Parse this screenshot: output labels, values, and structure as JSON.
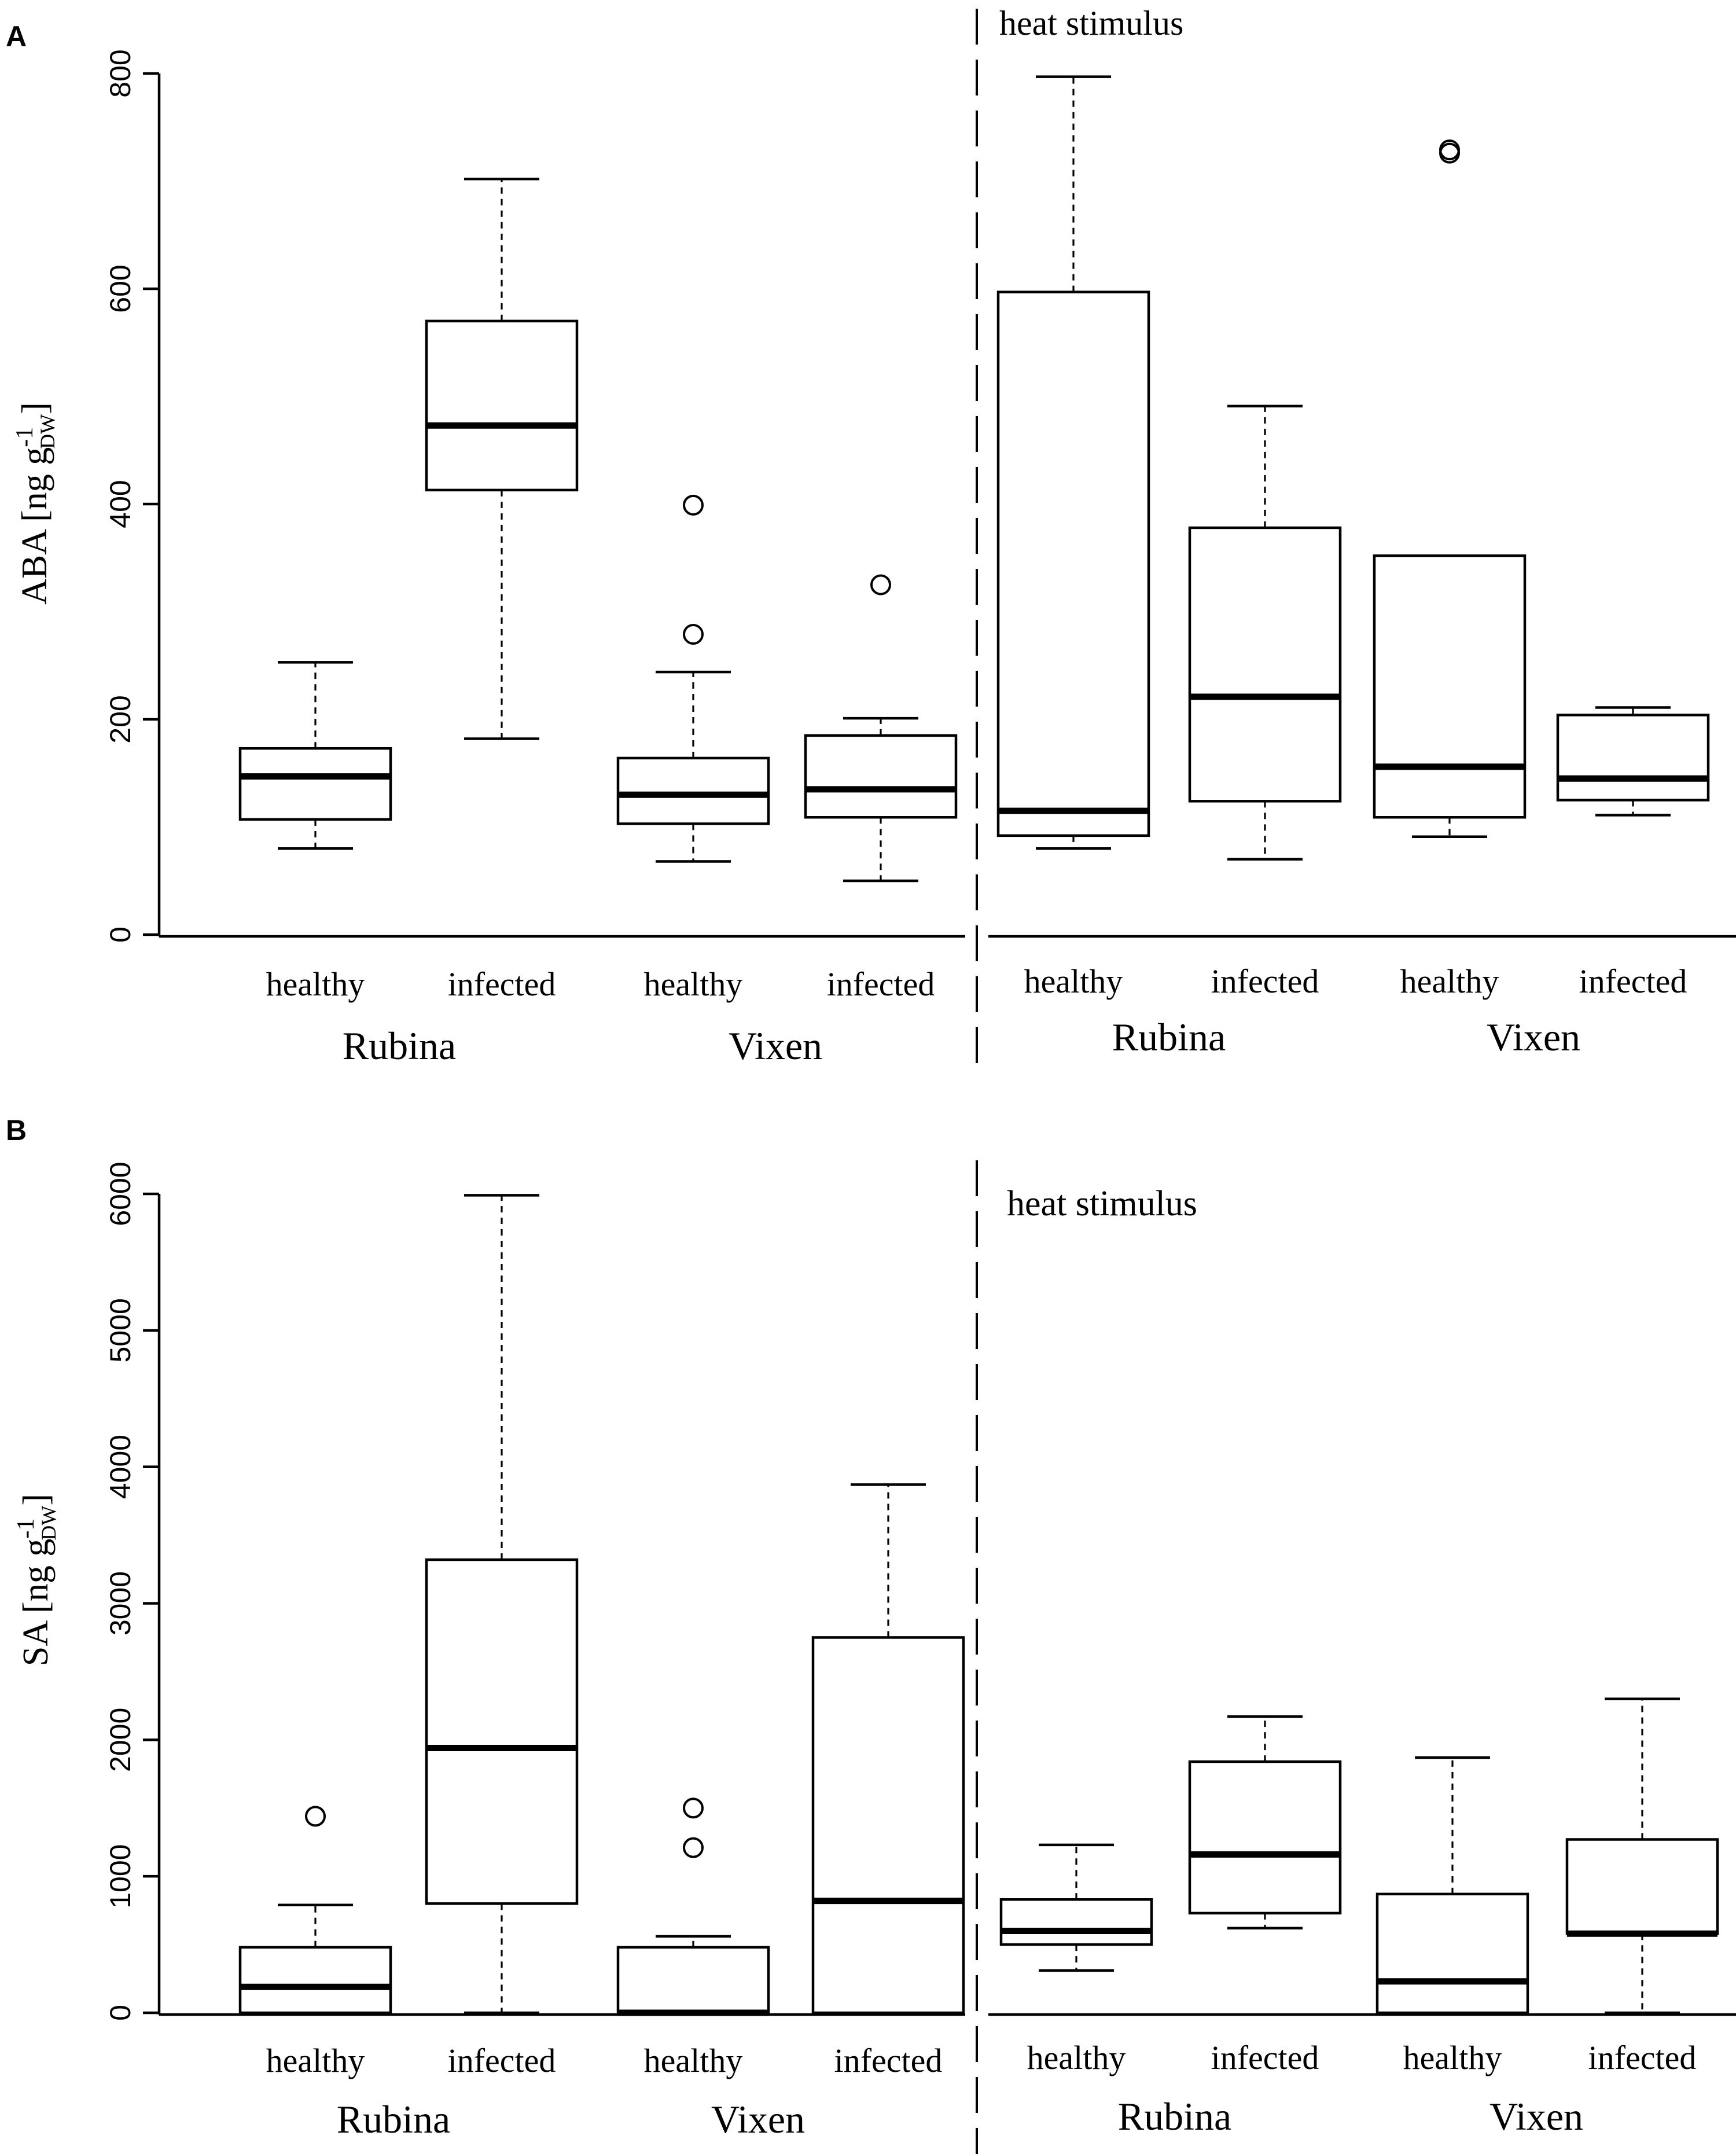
{
  "chart_data": [
    {
      "panel": "A",
      "type": "box",
      "ylabel": "ABA [ng g",
      "ylabel_sup": "-1",
      "ylabel_sub": "DW",
      "ylabel_end": "]",
      "ylim": [
        0,
        800
      ],
      "yticks": [
        "0",
        "200",
        "400",
        "600",
        "800"
      ],
      "annotation": "heat stimulus",
      "groups": [
        "Rubina",
        "Vixen",
        "Rubina",
        "Vixen"
      ],
      "boxes": [
        {
          "label": "healthy",
          "min": 80,
          "q1": 107,
          "median": 147,
          "q3": 173,
          "max": 253,
          "outliers": []
        },
        {
          "label": "infected",
          "min": 182,
          "q1": 413,
          "median": 473,
          "q3": 570,
          "max": 702,
          "outliers": []
        },
        {
          "label": "healthy",
          "min": 68,
          "q1": 103,
          "median": 130,
          "q3": 164,
          "max": 244,
          "outliers": [
            279,
            399
          ]
        },
        {
          "label": "infected",
          "min": 50,
          "q1": 109,
          "median": 135,
          "q3": 185,
          "max": 201,
          "outliers": [
            325
          ]
        },
        {
          "label": "healthy",
          "min": 80,
          "q1": 92,
          "median": 115,
          "q3": 597,
          "max": 797,
          "outliers": []
        },
        {
          "label": "infected",
          "min": 70,
          "q1": 124,
          "median": 221,
          "q3": 378,
          "max": 491,
          "outliers": []
        },
        {
          "label": "healthy",
          "min": 91,
          "q1": 109,
          "median": 156,
          "q3": 352,
          "max": 352,
          "outliers": [
            726,
            729
          ]
        },
        {
          "label": "infected",
          "min": 111,
          "q1": 125,
          "median": 145,
          "q3": 204,
          "max": 211,
          "outliers": []
        }
      ]
    },
    {
      "panel": "B",
      "type": "box",
      "ylabel": "SA [ng g",
      "ylabel_sup": "-1",
      "ylabel_sub": "DW",
      "ylabel_end": "]",
      "ylim": [
        0,
        6000
      ],
      "yticks": [
        "0",
        "1000",
        "2000",
        "3000",
        "4000",
        "5000",
        "6000"
      ],
      "annotation": "heat stimulus",
      "groups": [
        "Rubina",
        "Vixen",
        "Rubina",
        "Vixen"
      ],
      "boxes": [
        {
          "label": "healthy",
          "min": 0,
          "q1": 0,
          "median": 190,
          "q3": 480,
          "max": 790,
          "outliers": [
            1440
          ]
        },
        {
          "label": "infected",
          "min": 0,
          "q1": 800,
          "median": 1940,
          "q3": 3320,
          "max": 5990,
          "outliers": []
        },
        {
          "label": "healthy",
          "min": 0,
          "q1": 0,
          "median": 0,
          "q3": 480,
          "max": 560,
          "outliers": [
            1210,
            1500
          ]
        },
        {
          "label": "infected",
          "min": 0,
          "q1": 0,
          "median": 820,
          "q3": 2750,
          "max": 3870,
          "outliers": []
        },
        {
          "label": "healthy",
          "min": 310,
          "q1": 500,
          "median": 600,
          "q3": 830,
          "max": 1230,
          "outliers": []
        },
        {
          "label": "infected",
          "min": 620,
          "q1": 730,
          "median": 1160,
          "q3": 1840,
          "max": 2170,
          "outliers": []
        },
        {
          "label": "healthy",
          "min": 0,
          "q1": 0,
          "median": 230,
          "q3": 870,
          "max": 1870,
          "outliers": []
        },
        {
          "label": "infected",
          "min": 0,
          "q1": 580,
          "median": 580,
          "q3": 1270,
          "max": 2300,
          "outliers": []
        }
      ]
    }
  ],
  "panel_labels": [
    "A",
    "B"
  ]
}
